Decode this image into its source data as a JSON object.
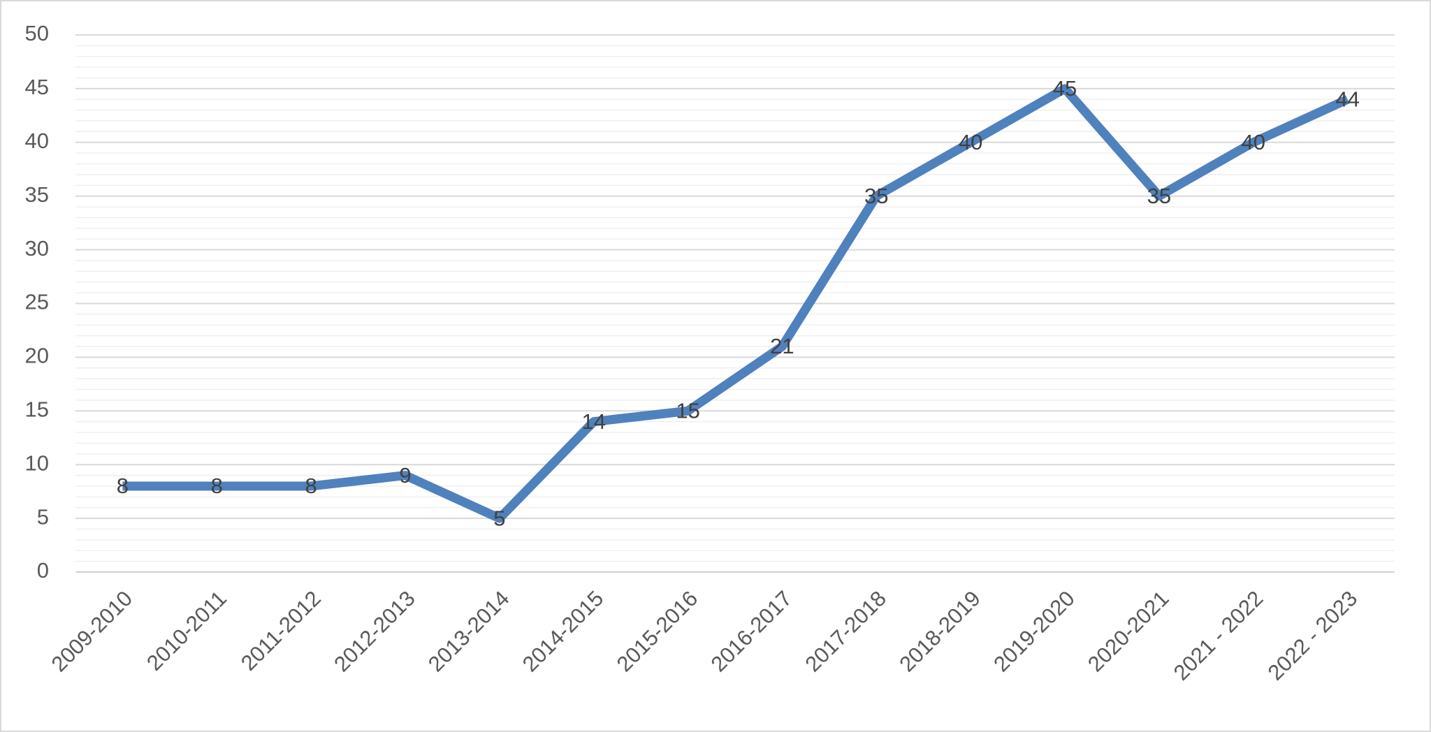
{
  "chart_data": {
    "type": "line",
    "categories": [
      "2009-2010",
      "2010-2011",
      "2011-2012",
      "2012-2013",
      "2013-2014",
      "2014-2015",
      "2015-2016",
      "2016-2017",
      "2017-2018",
      "2018-2019",
      "2019-2020",
      "2020-2021",
      "2021 - 2022",
      "2022 - 2023"
    ],
    "values": [
      8,
      8,
      8,
      9,
      5,
      14,
      15,
      21,
      35,
      40,
      45,
      35,
      40,
      44
    ],
    "color": "#4f81bd",
    "ylim": [
      0,
      50
    ],
    "yticks": [
      0,
      5,
      10,
      15,
      20,
      25,
      30,
      35,
      40,
      45,
      50
    ],
    "grid": true,
    "minor_grid": true,
    "data_labels": true
  }
}
